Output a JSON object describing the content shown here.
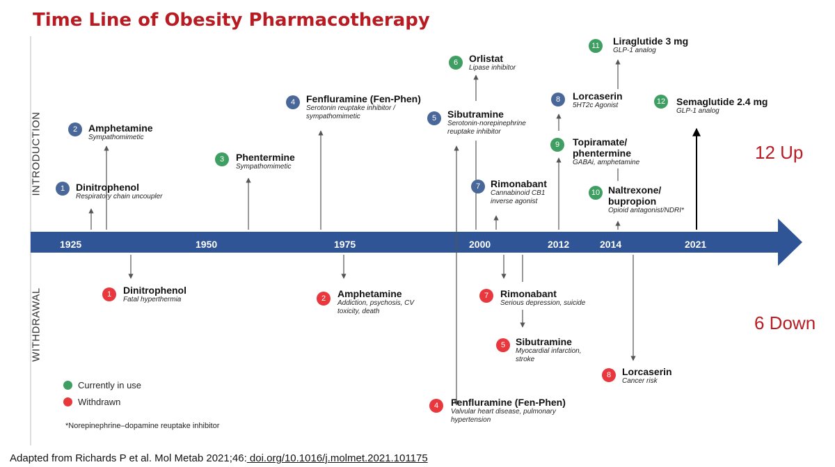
{
  "title": "Time Line of Obesity Pharmacotherapy",
  "axis_labels": {
    "introduction": "INTRODUCTION",
    "withdrawal": "WITHDRAWAL"
  },
  "years": [
    "1925",
    "1950",
    "1975",
    "2000",
    "2012",
    "2014",
    "2021"
  ],
  "summary": {
    "up": "12 Up",
    "down": "6 Down"
  },
  "introductions": [
    {
      "num": "1",
      "name": "Dinitrophenol",
      "desc": "Respiratory chain uncoupler",
      "status": "withdrawn"
    },
    {
      "num": "2",
      "name": "Amphetamine",
      "desc": "Sympathomimetic",
      "status": "withdrawn"
    },
    {
      "num": "3",
      "name": "Phentermine",
      "desc": "Sympathomimetic",
      "status": "in-use"
    },
    {
      "num": "4",
      "name": "Fenfluramine (Fen-Phen)",
      "desc": "Serotonin reuptake inhibitor / sympathomimetic",
      "status": "withdrawn"
    },
    {
      "num": "5",
      "name": "Sibutramine",
      "desc": "Serotonin-norepinephrine reuptake inhibitor",
      "status": "withdrawn"
    },
    {
      "num": "6",
      "name": "Orlistat",
      "desc": "Lipase inhibitor",
      "status": "in-use"
    },
    {
      "num": "7",
      "name": "Rimonabant",
      "desc": "Cannabinoid CB1 inverse agonist",
      "status": "withdrawn"
    },
    {
      "num": "8",
      "name": "Lorcaserin",
      "desc": "5HT2c Agonist",
      "status": "withdrawn"
    },
    {
      "num": "9",
      "name": "Topiramate/ phentermine",
      "desc": "GABAi, amphetamine",
      "status": "in-use"
    },
    {
      "num": "10",
      "name": "Naltrexone/ bupropion",
      "desc": "Opioid antagonist/NDRI*",
      "status": "in-use"
    },
    {
      "num": "11",
      "name": "Liraglutide 3 mg",
      "desc": "GLP-1 analog",
      "status": "in-use"
    },
    {
      "num": "12",
      "name": "Semaglutide 2.4 mg",
      "desc": "GLP-1 analog",
      "status": "in-use"
    }
  ],
  "withdrawals": [
    {
      "num": "1",
      "name": "Dinitrophenol",
      "desc": "Fatal hyperthermia"
    },
    {
      "num": "2",
      "name": "Amphetamine",
      "desc": "Addiction, psychosis, CV toxicity, death"
    },
    {
      "num": "7",
      "name": "Rimonabant",
      "desc": "Serious depression, suicide"
    },
    {
      "num": "5",
      "name": "Sibutramine",
      "desc": "Myocardial infarction, stroke"
    },
    {
      "num": "8",
      "name": "Lorcaserin",
      "desc": "Cancer risk"
    },
    {
      "num": "4",
      "name": "Fenfluramine (Fen-Phen)",
      "desc": "Valvular heart disease, pulmonary hypertension"
    }
  ],
  "legend": {
    "in_use": "Currently in use",
    "withdrawn": "Withdrawn",
    "in_use_color": "#3f9e62",
    "withdrawn_color": "#e8383d"
  },
  "colors": {
    "intro_withdrawn": "#4a6799",
    "intro_in_use": "#3f9e62",
    "withdrawal": "#e8383d",
    "timeline": "#2f5597",
    "title": "#b81b22"
  },
  "footnote": "*Norepinephrine–dopamine reuptake inhibitor",
  "citation": {
    "text": "Adapted from Richards P et al.  Mol Metab 2021;46:",
    "doi": " doi.org/10.1016/j.molmet.2021.101175"
  }
}
